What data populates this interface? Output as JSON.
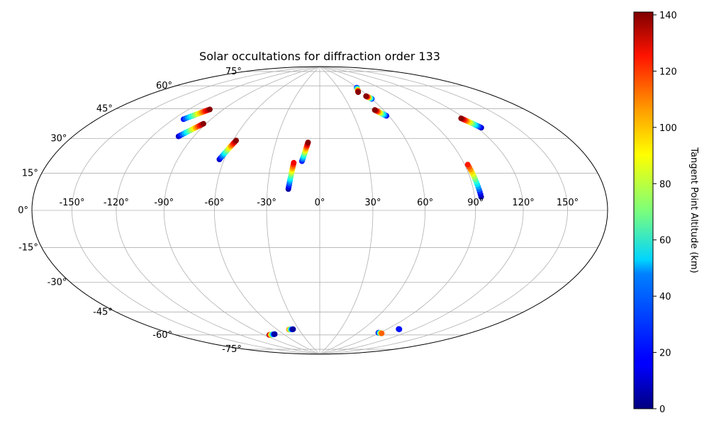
{
  "chart_data": {
    "type": "scatter",
    "projection": "hammer",
    "title": "Solar occultations for diffraction order 133",
    "grid": true,
    "lon_tick_labels": [
      "-150°",
      "-120°",
      "-90°",
      "-60°",
      "-30°",
      "0°",
      "30°",
      "60°",
      "90°",
      "120°",
      "150°"
    ],
    "lat_tick_labels": [
      "75°",
      "60°",
      "45°",
      "30°",
      "15°",
      "0°",
      "-15°",
      "-30°",
      "-45°",
      "-60°",
      "-75°"
    ],
    "colorbar": {
      "label": "Tangent Point Altitude (km)",
      "colormap": "jet",
      "range": [
        0,
        141
      ],
      "tick_labels": [
        "0",
        "20",
        "40",
        "60",
        "80",
        "100",
        "120",
        "140"
      ]
    },
    "series": [
      {
        "lon": [
          -112,
          -102
        ],
        "lat": [
          48,
          55
        ],
        "alt": [
          20,
          140
        ]
      },
      {
        "lon": [
          -101,
          -92
        ],
        "lat": [
          39,
          47
        ],
        "alt": [
          10,
          140
        ]
      },
      {
        "lon": [
          -63,
          -58
        ],
        "lat": [
          28,
          39
        ],
        "alt": [
          10,
          140
        ]
      },
      {
        "lon": [
          -11,
          -8
        ],
        "lat": [
          28,
          39
        ],
        "alt": [
          20,
          140
        ]
      },
      {
        "lon": [
          -18,
          -16
        ],
        "lat": [
          12,
          27
        ],
        "alt": [
          5,
          125
        ]
      },
      {
        "lon": [
          59,
          53
        ],
        "lat": [
          73,
          70
        ],
        "alt": [
          15,
          140
        ]
      },
      {
        "lon": [
          60,
          57
        ],
        "lat": [
          65,
          67
        ],
        "alt": [
          20,
          140
        ]
      },
      {
        "lon": [
          58,
          52
        ],
        "lat": [
          54,
          58
        ],
        "alt": [
          15,
          140
        ]
      },
      {
        "lon": [
          123,
          117
        ],
        "lat": [
          42,
          48
        ],
        "alt": [
          10,
          140
        ]
      },
      {
        "lon": [
          94,
          92
        ],
        "lat": [
          7,
          24
        ],
        "alt": [
          5,
          120
        ]
      },
      {
        "lon": [
          -83,
          -73
        ],
        "lat": [
          -73,
          -73
        ],
        "alt": [
          140,
          5
        ]
      },
      {
        "lon": [
          -44,
          -38
        ],
        "lat": [
          -71,
          -71
        ],
        "alt": [
          110,
          5
        ]
      },
      {
        "lon": [
          88,
          94
        ],
        "lat": [
          -71,
          -71
        ],
        "alt": [
          5,
          110
        ]
      },
      {
        "lon": [
          103,
          104
        ],
        "lat": [
          -67,
          -67
        ],
        "alt": [
          5,
          20
        ]
      }
    ]
  }
}
